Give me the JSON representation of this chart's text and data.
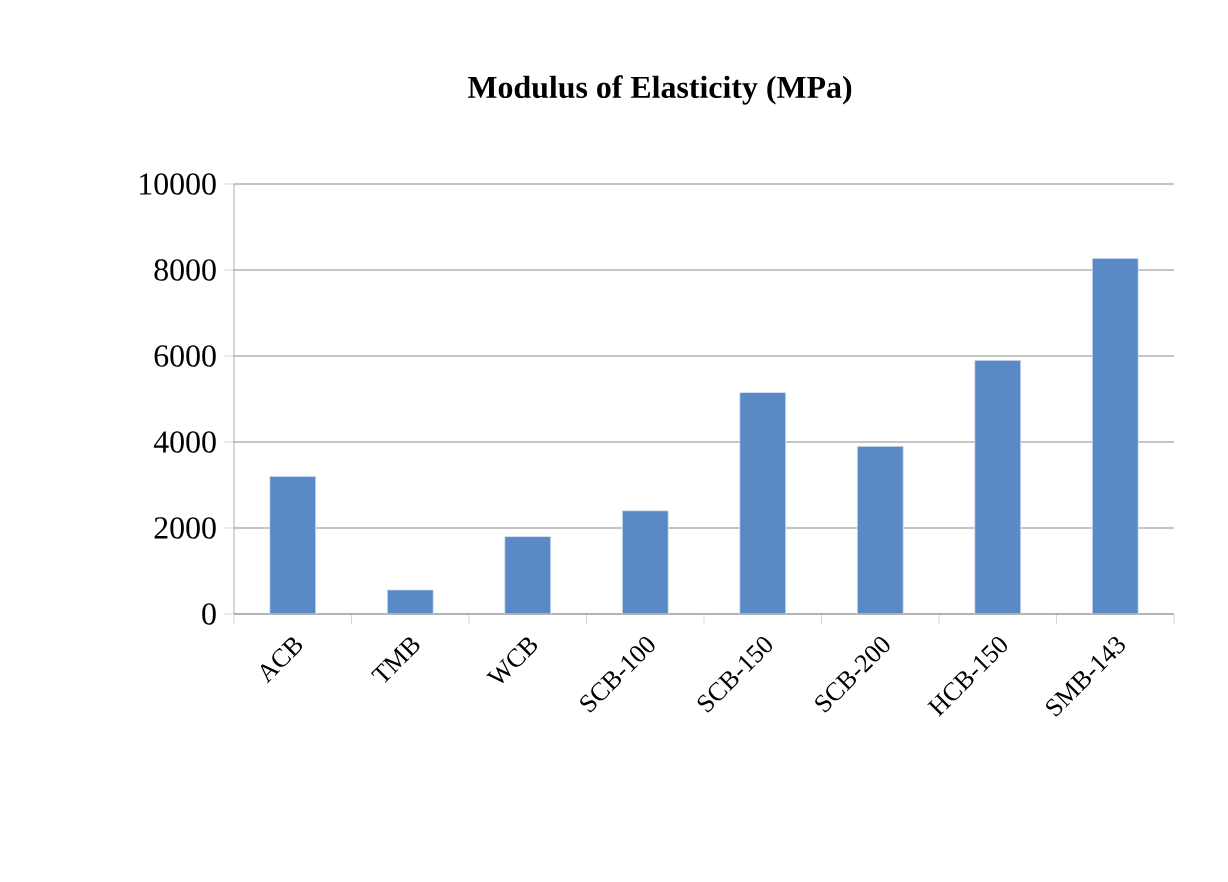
{
  "chart_data": {
    "type": "bar",
    "title": "Modulus of Elasticity (MPa)",
    "categories": [
      "ACB",
      "TMB",
      "WCB",
      "SCB-100",
      "SCB-150",
      "SCB-200",
      "HCB-150",
      "SMB-143"
    ],
    "values": [
      3200,
      560,
      1800,
      2400,
      5150,
      3900,
      5900,
      8270
    ],
    "color": "#5a8ac6",
    "ylim": [
      0,
      10000
    ],
    "yticks": [
      0,
      2000,
      4000,
      6000,
      8000,
      10000
    ],
    "grid": "y"
  }
}
